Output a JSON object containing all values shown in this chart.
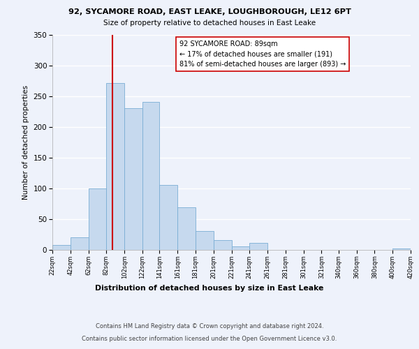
{
  "title_line1": "92, SYCAMORE ROAD, EAST LEAKE, LOUGHBOROUGH, LE12 6PT",
  "title_line2": "Size of property relative to detached houses in East Leake",
  "xlabel": "Distribution of detached houses by size in East Leake",
  "ylabel": "Number of detached properties",
  "bin_edges": [
    22,
    42,
    62,
    82,
    102,
    122,
    141,
    161,
    181,
    201,
    221,
    241,
    261,
    281,
    301,
    321,
    340,
    360,
    380,
    400,
    420
  ],
  "bin_labels": [
    "22sqm",
    "42sqm",
    "62sqm",
    "82sqm",
    "102sqm",
    "122sqm",
    "141sqm",
    "161sqm",
    "181sqm",
    "201sqm",
    "221sqm",
    "241sqm",
    "261sqm",
    "281sqm",
    "301sqm",
    "321sqm",
    "340sqm",
    "360sqm",
    "380sqm",
    "400sqm",
    "420sqm"
  ],
  "bar_heights": [
    7,
    20,
    100,
    272,
    231,
    241,
    105,
    69,
    30,
    15,
    5,
    11,
    0,
    0,
    0,
    0,
    0,
    0,
    0,
    2
  ],
  "bar_color": "#c6d9ee",
  "bar_edge_color": "#7aadd4",
  "property_line_x": 89,
  "property_line_color": "#cc0000",
  "ylim": [
    0,
    350
  ],
  "yticks": [
    0,
    50,
    100,
    150,
    200,
    250,
    300,
    350
  ],
  "annotation_text": "92 SYCAMORE ROAD: 89sqm\n← 17% of detached houses are smaller (191)\n81% of semi-detached houses are larger (893) →",
  "footer_line1": "Contains HM Land Registry data © Crown copyright and database right 2024.",
  "footer_line2": "Contains public sector information licensed under the Open Government Licence v3.0.",
  "background_color": "#eef2fb"
}
